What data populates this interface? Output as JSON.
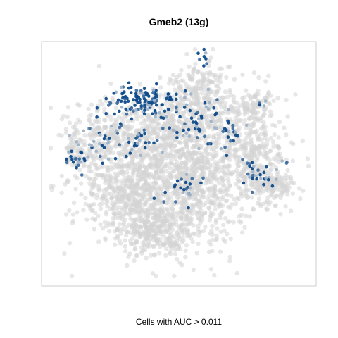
{
  "chart_data": {
    "type": "scatter",
    "title": "Gmeb2 (13g)",
    "subtitle": "Cells with AUC > 0.011",
    "xlabel": "",
    "ylabel": "",
    "grid": false,
    "axes_visible": false,
    "colors": {
      "background_cells": "#d3d3d3",
      "highlight_low": "#9fb3c8",
      "highlight_mid": "#3f6f9f",
      "highlight_high": "#0d4a8a",
      "frame": "#cccccc"
    },
    "series": [
      {
        "role": "all-cells",
        "color": "#d3d3d3",
        "regions": [
          {
            "cx": 0.48,
            "cy": 0.58,
            "rx": 0.33,
            "ry": 0.3,
            "n": 1400
          },
          {
            "cx": 0.4,
            "cy": 0.8,
            "rx": 0.14,
            "ry": 0.1,
            "n": 260
          },
          {
            "cx": 0.28,
            "cy": 0.62,
            "rx": 0.14,
            "ry": 0.14,
            "n": 220
          },
          {
            "cx": 0.22,
            "cy": 0.38,
            "rx": 0.12,
            "ry": 0.15,
            "n": 180
          },
          {
            "cx": 0.55,
            "cy": 0.32,
            "rx": 0.26,
            "ry": 0.18,
            "n": 500
          },
          {
            "cx": 0.8,
            "cy": 0.47,
            "rx": 0.11,
            "ry": 0.12,
            "n": 170
          },
          {
            "cx": 0.8,
            "cy": 0.26,
            "rx": 0.08,
            "ry": 0.08,
            "n": 90
          },
          {
            "cx": 0.86,
            "cy": 0.6,
            "rx": 0.09,
            "ry": 0.06,
            "n": 120
          },
          {
            "cx": 0.58,
            "cy": 0.15,
            "rx": 0.11,
            "ry": 0.09,
            "n": 110
          },
          {
            "cx": 0.09,
            "cy": 0.44,
            "rx": 0.05,
            "ry": 0.12,
            "n": 70
          }
        ]
      },
      {
        "role": "cells-above-threshold",
        "color": "#0d4a8a",
        "regions": [
          {
            "cx": 0.32,
            "cy": 0.23,
            "rx": 0.11,
            "ry": 0.08,
            "n": 85
          },
          {
            "cx": 0.43,
            "cy": 0.24,
            "rx": 0.09,
            "ry": 0.06,
            "n": 50
          },
          {
            "cx": 0.58,
            "cy": 0.33,
            "rx": 0.14,
            "ry": 0.11,
            "n": 55
          },
          {
            "cx": 0.2,
            "cy": 0.4,
            "rx": 0.09,
            "ry": 0.12,
            "n": 30
          },
          {
            "cx": 0.09,
            "cy": 0.47,
            "rx": 0.05,
            "ry": 0.08,
            "n": 25
          },
          {
            "cx": 0.34,
            "cy": 0.4,
            "rx": 0.08,
            "ry": 0.06,
            "n": 30
          },
          {
            "cx": 0.7,
            "cy": 0.38,
            "rx": 0.06,
            "ry": 0.05,
            "n": 18
          },
          {
            "cx": 0.52,
            "cy": 0.62,
            "rx": 0.1,
            "ry": 0.08,
            "n": 25
          },
          {
            "cx": 0.8,
            "cy": 0.55,
            "rx": 0.08,
            "ry": 0.06,
            "n": 30
          },
          {
            "cx": 0.9,
            "cy": 0.5,
            "rx": 0.03,
            "ry": 0.03,
            "n": 4
          },
          {
            "cx": 0.6,
            "cy": 0.05,
            "rx": 0.05,
            "ry": 0.04,
            "n": 8
          },
          {
            "cx": 0.81,
            "cy": 0.25,
            "rx": 0.04,
            "ry": 0.04,
            "n": 4
          }
        ]
      }
    ]
  }
}
